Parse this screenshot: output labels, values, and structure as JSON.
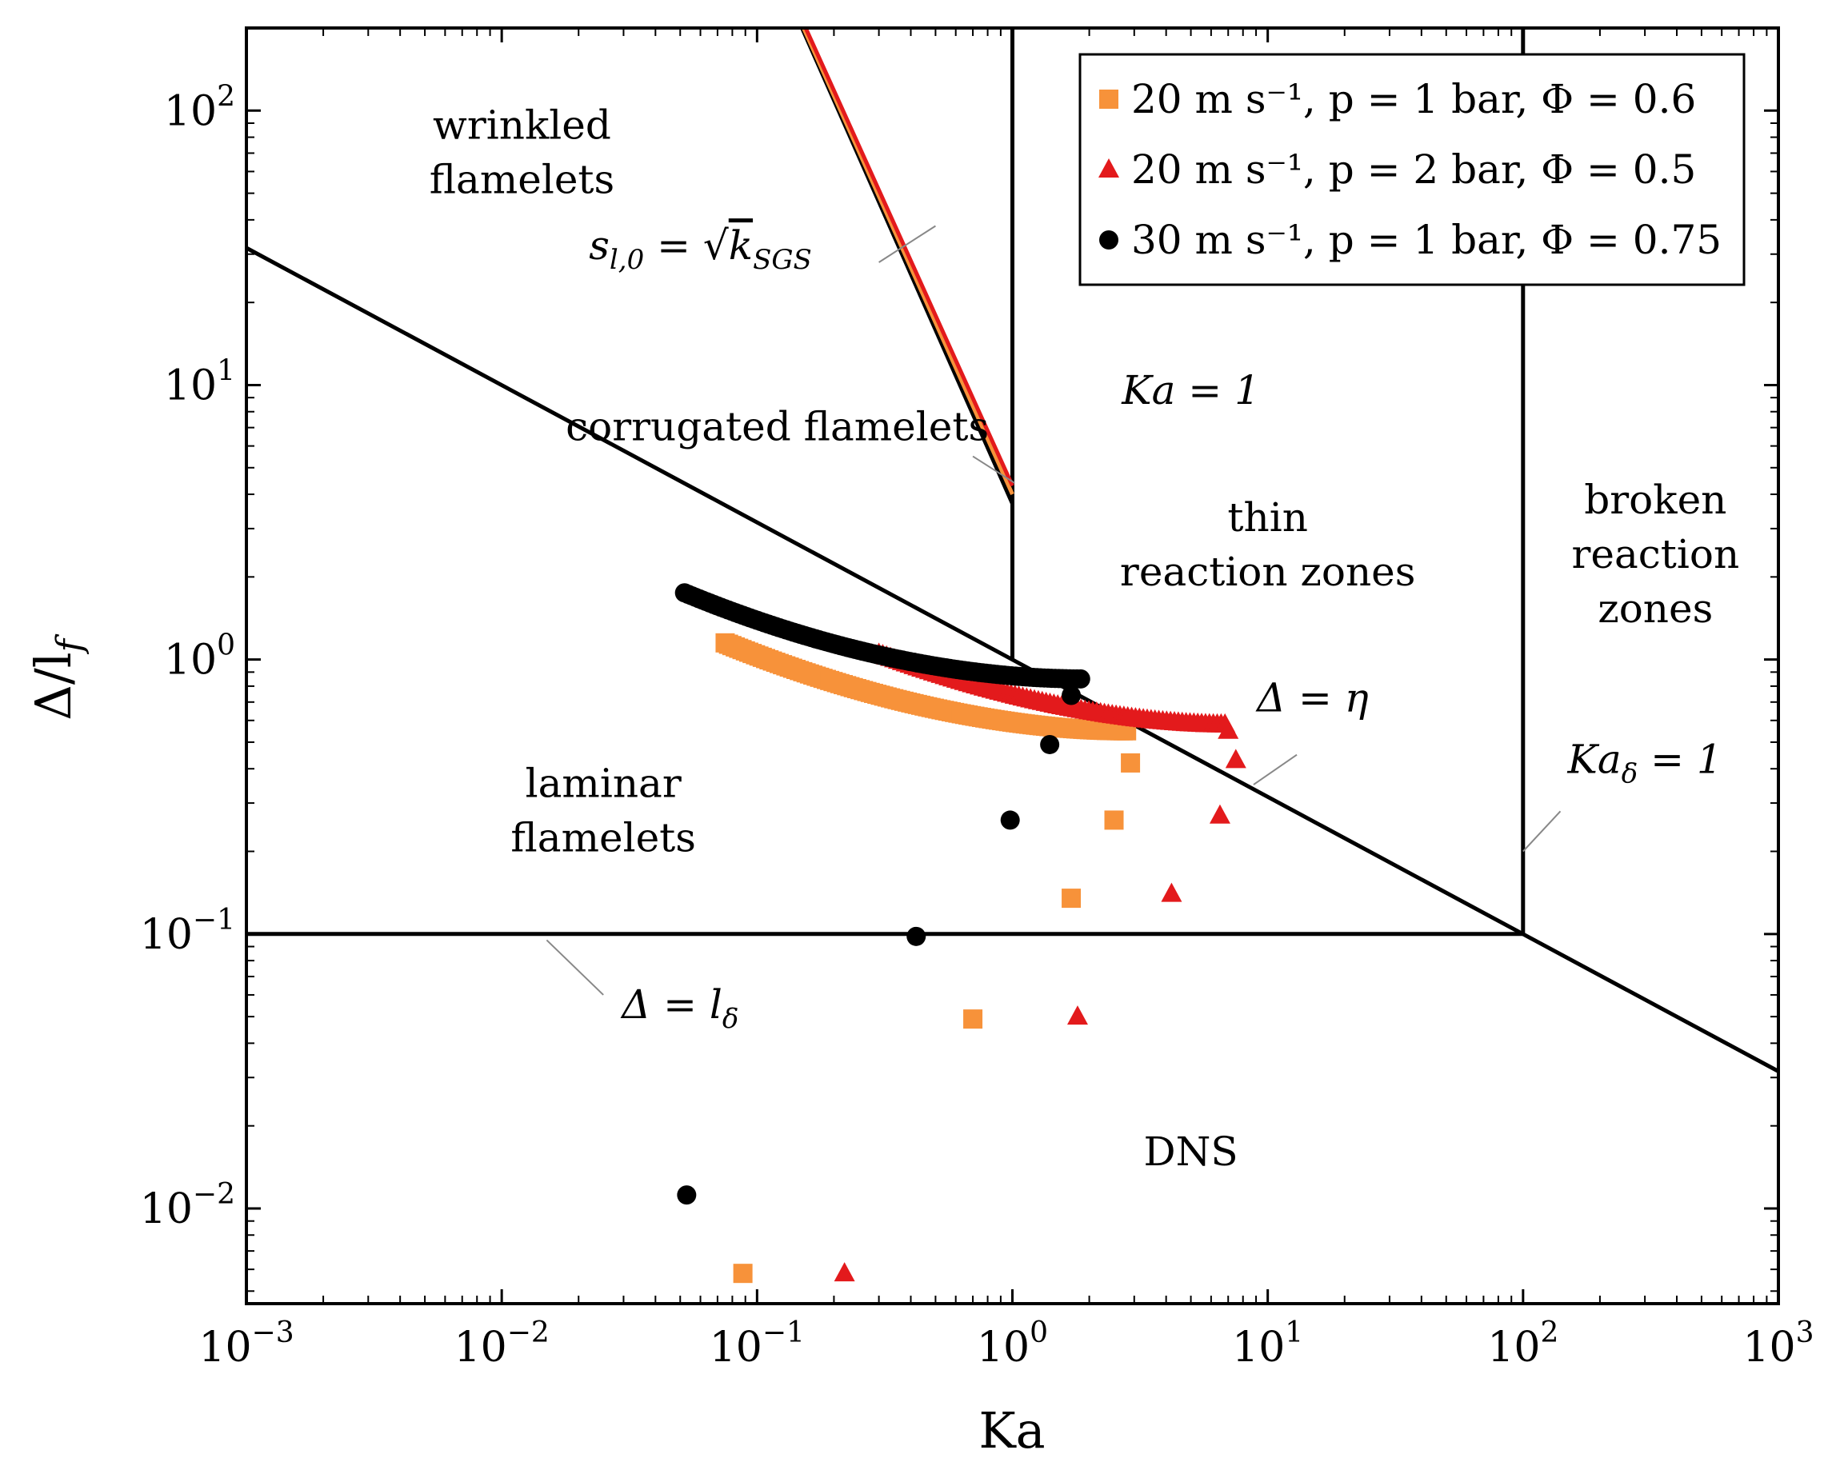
{
  "chart_data": {
    "type": "scatter",
    "title": "",
    "xlabel": "Ka",
    "ylabel": "Δ/l_f",
    "xscale": "log",
    "yscale": "log",
    "xlim": [
      0.001,
      1000
    ],
    "ylim": [
      0.0045,
      200
    ],
    "x_ticks": [
      {
        "value": 0.001,
        "base": "10",
        "exp": "−3"
      },
      {
        "value": 0.01,
        "base": "10",
        "exp": "−2"
      },
      {
        "value": 0.1,
        "base": "10",
        "exp": "−1"
      },
      {
        "value": 1,
        "base": "10",
        "exp": "0"
      },
      {
        "value": 10,
        "base": "10",
        "exp": "1"
      },
      {
        "value": 100,
        "base": "10",
        "exp": "2"
      },
      {
        "value": 1000,
        "base": "10",
        "exp": "3"
      }
    ],
    "y_ticks": [
      {
        "value": 0.01,
        "base": "10",
        "exp": "−2"
      },
      {
        "value": 0.1,
        "base": "10",
        "exp": "−1"
      },
      {
        "value": 1,
        "base": "10",
        "exp": "0"
      },
      {
        "value": 10,
        "base": "10",
        "exp": "1"
      },
      {
        "value": 100,
        "base": "10",
        "exp": "2"
      }
    ],
    "regime_lines": [
      {
        "name": "delta-eq-eta",
        "points": [
          [
            0.001,
            31.6
          ],
          [
            1000,
            0.0316
          ]
        ],
        "color": "#000000"
      },
      {
        "name": "delta-eq-ldelta",
        "points": [
          [
            0.001,
            0.1
          ],
          [
            100,
            0.1
          ]
        ],
        "color": "#000000"
      },
      {
        "name": "ka-eq-1",
        "points": [
          [
            1,
            1
          ],
          [
            1,
            200
          ]
        ],
        "color": "#000000"
      },
      {
        "name": "ka-delta-eq-1",
        "points": [
          [
            100,
            0.1
          ],
          [
            100,
            200
          ]
        ],
        "color": "#000000"
      },
      {
        "name": "sl-eq-sqrt-k-black",
        "points": [
          [
            0.15,
            200
          ],
          [
            1,
            3.7
          ]
        ],
        "color": "#000000"
      },
      {
        "name": "sl-eq-sqrt-k-orange",
        "points": [
          [
            0.152,
            200
          ],
          [
            1,
            4.0
          ]
        ],
        "color": "#f7923a"
      },
      {
        "name": "sl-eq-sqrt-k-red",
        "points": [
          [
            0.155,
            200
          ],
          [
            1,
            4.3
          ]
        ],
        "color": "#e31a1c"
      }
    ],
    "regions": [
      {
        "lines": [
          "wrinkled",
          "flamelets"
        ],
        "x": 0.012,
        "y": 70
      },
      {
        "lines": [
          "corrugated flamelets"
        ],
        "x": 0.12,
        "y": 7.0
      },
      {
        "lines": [
          "thin",
          "reaction zones"
        ],
        "x": 10,
        "y": 2.6
      },
      {
        "lines": [
          "broken",
          "reaction",
          "zones"
        ],
        "x": 330,
        "y": 2.4
      },
      {
        "lines": [
          "laminar",
          "flamelets"
        ],
        "x": 0.025,
        "y": 0.28
      },
      {
        "lines": [
          "DNS"
        ],
        "x": 5,
        "y": 0.016
      }
    ],
    "annotations": [
      {
        "text_parts": [
          "s",
          "l,0",
          " = √",
          "k",
          "SGS"
        ],
        "x": 0.06,
        "y": 32,
        "pointer": [
          [
            0.3,
            28
          ],
          [
            0.5,
            38
          ]
        ]
      },
      {
        "text": "Ka = 1",
        "x": 5,
        "y": 9.5,
        "pointer": [
          [
            0.7,
            5.5
          ],
          [
            1.02,
            4.4
          ]
        ]
      },
      {
        "text": "Δ = η",
        "x": 15,
        "y": 0.72,
        "pointer": [
          [
            8.8,
            0.35
          ],
          [
            13,
            0.45
          ]
        ]
      },
      {
        "text": "Ka",
        "sub": "δ",
        "tail": " = 1",
        "x": 300,
        "y": 0.43,
        "pointer": [
          [
            100,
            0.2
          ],
          [
            140,
            0.28
          ]
        ]
      },
      {
        "text": "Δ = l",
        "sub": "δ",
        "x": 0.05,
        "y": 0.055,
        "pointer": [
          [
            0.015,
            0.095
          ],
          [
            0.025,
            0.06
          ]
        ]
      }
    ],
    "legend": {
      "position": "top-right",
      "entries": [
        {
          "text": "20 m s⁻¹, p = 1 bar, Φ = 0.6",
          "marker": "square",
          "color": "#f7923a"
        },
        {
          "text": "20 m s⁻¹, p = 2 bar, Φ = 0.5",
          "marker": "triangle",
          "color": "#e31a1c"
        },
        {
          "text": "30 m s⁻¹, p = 1 bar, Φ = 0.75",
          "marker": "circle",
          "color": "#000000"
        }
      ]
    },
    "series": [
      {
        "name": "20 m s⁻¹, p = 1 bar, Φ = 0.6",
        "marker": "square",
        "color": "#f7923a",
        "dense_curve": {
          "x_start": 0.075,
          "x_end": 2.8,
          "y_start": 1.15,
          "y_end": 0.55,
          "shape": 0.85,
          "count": 120
        },
        "points": [
          [
            2.9,
            0.42
          ],
          [
            2.5,
            0.26
          ],
          [
            1.7,
            0.135
          ],
          [
            0.7,
            0.049
          ],
          [
            0.088,
            0.0058
          ]
        ]
      },
      {
        "name": "20 m s⁻¹, p = 2 bar, Φ = 0.5",
        "marker": "triangle",
        "color": "#e31a1c",
        "dense_curve": {
          "x_start": 0.3,
          "x_end": 6.8,
          "y_start": 1.05,
          "y_end": 0.58,
          "shape": 0.8,
          "count": 90
        },
        "points": [
          [
            7.0,
            0.55
          ],
          [
            7.5,
            0.43
          ],
          [
            6.5,
            0.27
          ],
          [
            4.2,
            0.14
          ],
          [
            1.8,
            0.05
          ],
          [
            0.22,
            0.0058
          ]
        ]
      },
      {
        "name": "30 m s⁻¹, p = 1 bar, Φ = 0.75",
        "marker": "circle",
        "color": "#000000",
        "dense_curve": {
          "x_start": 0.052,
          "x_end": 1.85,
          "y_start": 1.75,
          "y_end": 0.85,
          "shape": 0.9,
          "count": 110
        },
        "points": [
          [
            1.7,
            0.74
          ],
          [
            1.4,
            0.49
          ],
          [
            0.98,
            0.26
          ],
          [
            0.42,
            0.098
          ],
          [
            0.053,
            0.0112
          ]
        ]
      }
    ]
  }
}
